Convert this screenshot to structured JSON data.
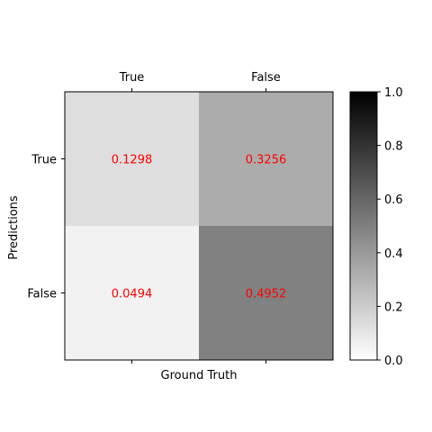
{
  "chart_data": {
    "type": "heatmap",
    "title": "",
    "xlabel": "Ground Truth",
    "ylabel": "Predictions",
    "x_categories": [
      "True",
      "False"
    ],
    "y_categories": [
      "True",
      "False"
    ],
    "values": [
      [
        0.1298,
        0.3256
      ],
      [
        0.0494,
        0.4952
      ]
    ],
    "value_labels": [
      [
        "0.1298",
        "0.3256"
      ],
      [
        "0.0494",
        "0.4952"
      ]
    ],
    "value_label_color": "#ff0000",
    "colormap": "Greys",
    "color_min": "#ffffff",
    "color_max": "#000000",
    "vmin": 0,
    "vmax": 1,
    "colorbar_ticks": [
      0.0,
      0.2,
      0.4,
      0.6,
      0.8,
      1.0
    ],
    "colorbar_tick_labels": [
      "0.0",
      "0.2",
      "0.4",
      "0.6",
      "0.8",
      "1.0"
    ],
    "x_tick_position": "top",
    "grid": false
  }
}
